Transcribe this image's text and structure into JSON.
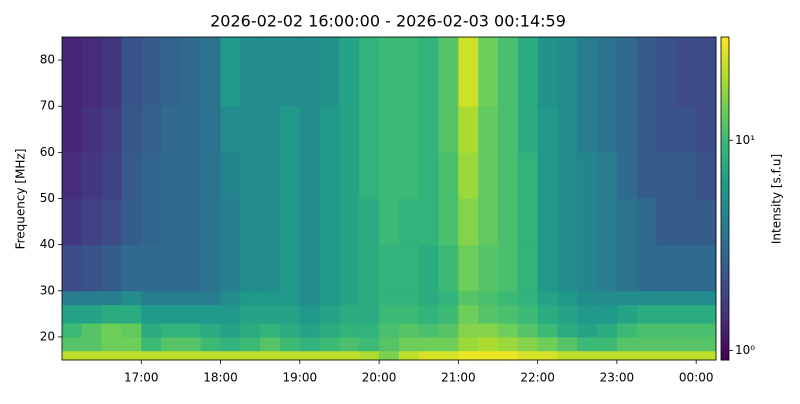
{
  "chart_data": {
    "type": "heatmap",
    "title": "2026-02-02 16:00:00 - 2026-02-03 00:14:59",
    "ylabel": "Frequency [MHz]",
    "colorbar_label": "Intensity [s.f.u]",
    "colormap": "viridis",
    "xlim": [
      16,
      24.25
    ],
    "xticks": [
      {
        "value": 17,
        "label": "17:00"
      },
      {
        "value": 18,
        "label": "18:00"
      },
      {
        "value": 19,
        "label": "19:00"
      },
      {
        "value": 20,
        "label": "20:00"
      },
      {
        "value": 21,
        "label": "21:00"
      },
      {
        "value": 22,
        "label": "22:00"
      },
      {
        "value": 23,
        "label": "23:00"
      },
      {
        "value": 24,
        "label": "00:00"
      }
    ],
    "ylim": [
      15,
      85
    ],
    "yticks": [
      20,
      30,
      40,
      50,
      60,
      70,
      80
    ],
    "clim": [
      0.9,
      31
    ],
    "clog": true,
    "cticks": [
      {
        "value": 1,
        "label": "10⁰"
      },
      {
        "value": 10,
        "label": "10¹"
      }
    ],
    "x_edges": [
      16,
      16.25,
      16.5,
      16.75,
      17,
      17.25,
      17.5,
      17.75,
      18,
      18.25,
      18.5,
      18.75,
      19,
      19.25,
      19.5,
      19.75,
      20,
      20.25,
      20.5,
      20.75,
      21,
      21.25,
      21.5,
      21.75,
      22,
      22.25,
      22.5,
      22.75,
      23,
      23.25,
      23.5,
      23.75,
      24,
      24.25
    ],
    "y_edges": [
      15,
      17,
      20,
      23,
      27,
      30,
      40,
      50,
      60,
      70,
      85
    ],
    "z": [
      [
        22,
        22,
        22,
        22,
        22,
        22,
        22,
        22,
        22,
        22,
        22,
        22,
        22,
        22,
        22,
        20,
        15,
        22,
        25,
        25,
        28,
        28,
        28,
        25,
        25,
        22,
        22,
        22,
        22,
        22,
        22,
        22,
        22
      ],
      [
        12,
        12,
        14,
        14,
        10,
        12,
        12,
        10,
        9,
        10,
        12,
        10,
        9,
        10,
        11,
        10,
        12,
        14,
        14,
        14,
        18,
        20,
        18,
        16,
        14,
        12,
        10,
        10,
        12,
        12,
        12,
        12,
        12
      ],
      [
        10,
        12,
        14,
        13,
        8,
        9,
        9,
        8,
        7,
        8,
        9,
        8,
        7,
        8,
        9,
        9,
        11,
        12,
        11,
        12,
        16,
        16,
        14,
        12,
        10,
        8,
        7,
        8,
        10,
        11,
        11,
        11,
        11
      ],
      [
        7,
        7,
        8,
        8,
        6,
        6,
        6,
        6,
        6,
        7,
        7,
        7,
        6,
        7,
        8,
        8,
        10,
        10,
        9,
        10,
        14,
        12,
        11,
        10,
        8,
        7,
        6,
        6,
        7,
        8,
        8,
        8,
        8
      ],
      [
        4,
        4,
        4,
        5,
        4,
        4,
        4,
        4,
        5,
        6,
        6,
        6,
        5,
        6,
        7,
        8,
        9,
        9,
        8,
        9,
        12,
        11,
        10,
        9,
        7,
        6,
        5,
        5,
        5,
        5,
        5,
        5,
        5
      ],
      [
        2,
        2.2,
        2.5,
        3,
        3,
        3,
        3,
        3.5,
        4,
        5,
        5,
        6,
        5,
        6,
        7,
        8,
        9,
        9,
        8,
        10,
        14,
        12,
        11,
        9,
        6,
        5,
        4.5,
        4,
        3.5,
        3,
        3,
        3,
        3
      ],
      [
        1.6,
        1.8,
        2,
        2.5,
        2.8,
        3,
        3,
        3.5,
        4,
        5,
        5,
        6,
        5,
        6,
        7,
        8,
        10,
        9,
        9,
        11,
        16,
        13,
        11,
        9,
        6,
        5,
        4.5,
        4,
        3.5,
        3,
        2.5,
        2.5,
        2.5
      ],
      [
        1.4,
        1.6,
        1.8,
        2.4,
        2.8,
        3,
        3,
        3.5,
        4.5,
        5,
        5,
        6,
        5,
        6,
        7,
        9,
        10,
        10,
        9,
        11,
        18,
        13,
        11,
        9,
        6,
        5,
        4.5,
        4,
        3,
        2.5,
        2.5,
        2.5,
        2.2
      ],
      [
        1.3,
        1.5,
        1.7,
        2.3,
        2.6,
        3,
        3,
        3.5,
        5,
        5,
        5,
        6,
        5,
        6,
        7,
        9,
        10,
        10,
        9,
        12,
        20,
        13,
        11,
        8,
        6,
        5,
        4,
        3.5,
        3,
        2.5,
        2.2,
        2.2,
        2
      ],
      [
        1.3,
        1.4,
        1.6,
        2.2,
        2.5,
        2.8,
        3,
        3.5,
        6,
        5,
        5,
        5,
        5,
        5.5,
        7,
        9,
        10,
        10,
        9,
        12,
        24,
        14,
        11,
        8,
        5.5,
        5,
        4,
        3.5,
        3,
        2.5,
        2.2,
        2,
        2
      ]
    ]
  }
}
